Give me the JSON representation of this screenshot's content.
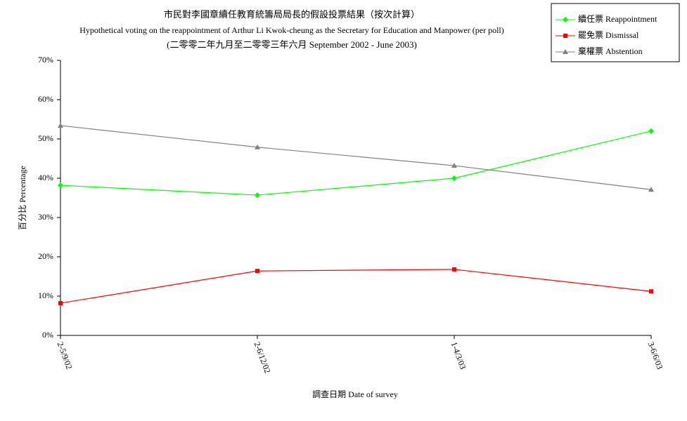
{
  "chart_data": {
    "type": "line",
    "title": "市民對李國章續任教育統籌局局長的假設投票結果（按次計算）",
    "subtitle": "Hypothetical voting on the reappointment of Arthur Li Kwok-cheung as the Secretary for Education and Manpower (per poll)",
    "subtitle2": "(二零零二年九月至二零零三年六月 September 2002 - June 2003)",
    "x_label": "調查日期 Date of survey",
    "y_label": "百分比 Percentage",
    "categories": [
      "2-5/9/02",
      "2-6/12/02",
      "1-4/3/03",
      "3-6/6/03"
    ],
    "series": [
      {
        "name": "續任票 Reappointment",
        "color": "#00ff00",
        "marker": "diamond",
        "values": [
          38.2,
          35.7,
          40.0,
          52.0
        ]
      },
      {
        "name": "罷免票 Dismissal",
        "color": "#ff0000",
        "marker": "square",
        "values": [
          8.2,
          16.4,
          16.8,
          11.2
        ]
      },
      {
        "name": "棄權票 Abstention",
        "color": "#808080",
        "marker": "triangle",
        "values": [
          53.4,
          47.9,
          43.2,
          37.1
        ]
      }
    ],
    "ylim": [
      0,
      70
    ],
    "yticks": [
      {
        "value": 0,
        "label": "0%"
      },
      {
        "value": 10,
        "label": "10%"
      },
      {
        "value": 20,
        "label": "20%"
      },
      {
        "value": 30,
        "label": "30%"
      },
      {
        "value": 40,
        "label": "40%"
      },
      {
        "value": 50,
        "label": "50%"
      },
      {
        "value": 60,
        "label": "60%"
      },
      {
        "value": 70,
        "label": "70%"
      }
    ],
    "legend": "top-right"
  }
}
